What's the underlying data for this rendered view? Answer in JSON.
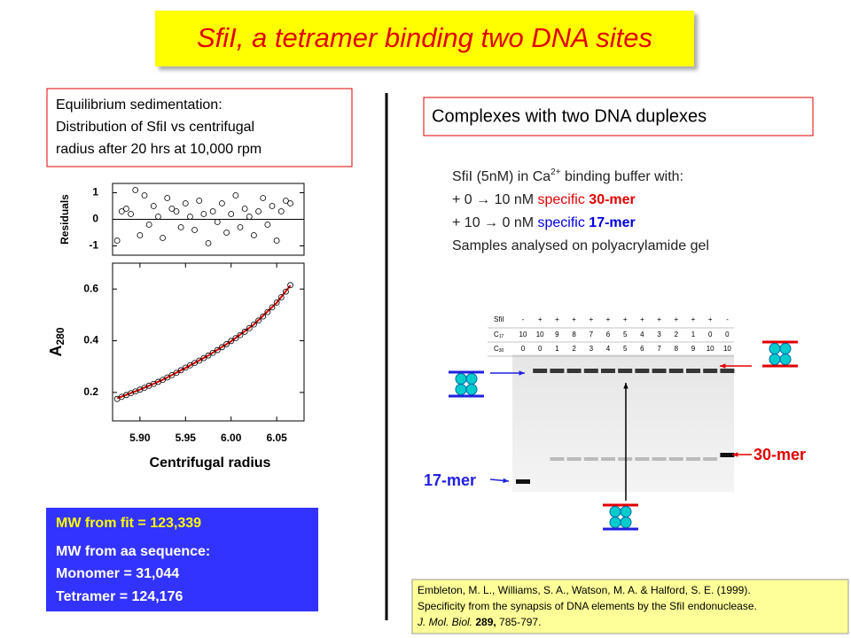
{
  "title": "SfiI, a tetramer binding two DNA sites",
  "left_box": {
    "lines": [
      "Equilibrium sedimentation:",
      "Distribution of SfiI vs centrifugal",
      "radius after 20 hrs at 10,000 rpm"
    ]
  },
  "chart_data": [
    {
      "type": "scatter",
      "ylabel": "Residuals",
      "color": "#000000",
      "zero_line": true,
      "x": [
        5.875,
        5.88,
        5.885,
        5.89,
        5.895,
        5.9,
        5.905,
        5.91,
        5.915,
        5.92,
        5.925,
        5.93,
        5.935,
        5.94,
        5.945,
        5.95,
        5.955,
        5.96,
        5.965,
        5.97,
        5.975,
        5.98,
        5.985,
        5.99,
        5.995,
        6.0,
        6.005,
        6.01,
        6.015,
        6.02,
        6.025,
        6.03,
        6.035,
        6.04,
        6.045,
        6.05,
        6.055,
        6.06,
        6.065
      ],
      "values": [
        -0.8,
        0.3,
        0.4,
        0.2,
        1.1,
        -0.6,
        0.9,
        -0.2,
        0.5,
        0.1,
        -0.7,
        0.8,
        0.4,
        0.3,
        -0.3,
        0.6,
        0.1,
        -0.4,
        0.7,
        0.2,
        -0.9,
        0.3,
        -0.1,
        0.6,
        -0.5,
        0.2,
        0.9,
        -0.3,
        0.4,
        0.1,
        -0.6,
        0.3,
        0.8,
        -0.2,
        0.5,
        -0.8,
        0.3,
        0.7,
        0.6
      ],
      "xlim": [
        5.87,
        6.08
      ],
      "ylim": [
        -1.35,
        1.35
      ],
      "yticks": [
        1,
        0,
        -1
      ]
    },
    {
      "type": "scatter",
      "ylabel": {
        "base": "A",
        "sub": "280"
      },
      "xlabel": "Centrifugal radius",
      "color": "#000000",
      "x": [
        5.875,
        5.88,
        5.885,
        5.89,
        5.895,
        5.9,
        5.905,
        5.91,
        5.915,
        5.92,
        5.925,
        5.93,
        5.935,
        5.94,
        5.945,
        5.95,
        5.955,
        5.96,
        5.965,
        5.97,
        5.975,
        5.98,
        5.985,
        5.99,
        5.995,
        6.0,
        6.005,
        6.01,
        6.015,
        6.02,
        6.025,
        6.03,
        6.035,
        6.04,
        6.045,
        6.05,
        6.055,
        6.06,
        6.065
      ],
      "values": [
        0.175,
        0.183,
        0.19,
        0.197,
        0.204,
        0.211,
        0.218,
        0.226,
        0.233,
        0.241,
        0.249,
        0.258,
        0.267,
        0.276,
        0.286,
        0.296,
        0.305,
        0.314,
        0.323,
        0.333,
        0.343,
        0.353,
        0.364,
        0.375,
        0.387,
        0.399,
        0.41,
        0.422,
        0.435,
        0.449,
        0.463,
        0.478,
        0.494,
        0.511,
        0.529,
        0.548,
        0.568,
        0.59,
        0.615
      ],
      "fit": {
        "color": "#e00000",
        "x": [
          5.875,
          5.9,
          5.925,
          5.95,
          5.975,
          6.0,
          6.025,
          6.05,
          6.065
        ],
        "values": [
          0.177,
          0.211,
          0.249,
          0.295,
          0.343,
          0.398,
          0.463,
          0.547,
          0.614
        ]
      },
      "xlim": [
        5.87,
        6.08
      ],
      "ylim": [
        0.09,
        0.7
      ],
      "xticks": [
        {
          "value": 5.9,
          "label": "5.90"
        },
        5.95,
        {
          "value": 6.0,
          "label": "6.00"
        },
        6.05
      ],
      "yticks": [
        0.6,
        0.4,
        0.2
      ]
    }
  ],
  "right_box": "Complexes with two DNA duplexes",
  "conditions": {
    "line1": {
      "text": "SfiI (5nM) in Ca",
      "sup": "2+",
      "rest": " binding buffer with:"
    },
    "line2": {
      "text": "+ 0 → 10 nM ",
      "specific": "specific ",
      "mer": "30-mer"
    },
    "line3": {
      "text": "+ 10 → 0 nM ",
      "specific": "specific ",
      "mer": "17-mer"
    },
    "line4": "Samples analysed on polyacrylamide gel"
  },
  "gel": {
    "rows": [
      {
        "label": "SfiI",
        "cells": [
          "-",
          "+",
          "+",
          "+",
          "+",
          "+",
          "+",
          "+",
          "+",
          "+",
          "+",
          "+",
          "-"
        ]
      },
      {
        "label": {
          "base": "C",
          "sub": "17"
        },
        "cells": [
          10,
          10,
          9,
          8,
          7,
          6,
          5,
          4,
          3,
          2,
          1,
          0,
          0
        ]
      },
      {
        "label": {
          "base": "C",
          "sub": "30"
        },
        "cells": [
          0,
          0,
          1,
          2,
          3,
          4,
          5,
          6,
          7,
          8,
          9,
          10,
          10
        ]
      }
    ],
    "label_17": "17-mer",
    "label_30": "30-mer"
  },
  "mw_box": {
    "fit": "MW from fit = 123,339",
    "lines": [
      "MW from aa sequence:",
      "Monomer = 31,044",
      "Tetramer = 124,176"
    ]
  },
  "citation": {
    "line1": "Embleton, M. L., Williams, S. A., Watson, M. A. & Halford, S. E. (1999).",
    "line2": "Specificity from the synapsis of DNA elements by the SfiI endonuclease.",
    "line3": {
      "journal": "J. Mol. Biol.",
      "volume": "289,",
      "pages": " 785-797."
    }
  }
}
